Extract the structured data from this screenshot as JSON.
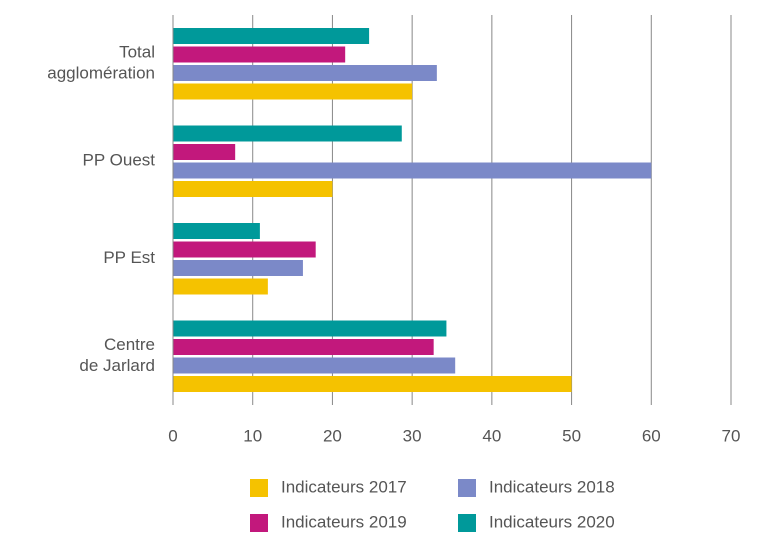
{
  "chart_data": {
    "type": "bar",
    "orientation": "horizontal",
    "categories": [
      "Total\nagglomération",
      "PP Ouest",
      "PP Est",
      "Centre\nde Jarlard"
    ],
    "series": [
      {
        "name": "Indicateurs 2017",
        "color": "#f5c200",
        "values": [
          30,
          20,
          11.9,
          50
        ]
      },
      {
        "name": "Indicateurs 2018",
        "color": "#7b89c8",
        "values": [
          33.1,
          60,
          16.3,
          35.4
        ]
      },
      {
        "name": "Indicateurs 2019",
        "color": "#c2187c",
        "values": [
          21.6,
          7.8,
          17.9,
          32.7
        ]
      },
      {
        "name": "Indicateurs 2020",
        "color": "#00999a",
        "values": [
          24.6,
          28.7,
          10.9,
          34.3
        ]
      }
    ],
    "xlim": [
      0,
      70
    ],
    "xticks": [
      0,
      10,
      20,
      30,
      40,
      50,
      60,
      70
    ],
    "grid": true,
    "legend": "bottom"
  }
}
